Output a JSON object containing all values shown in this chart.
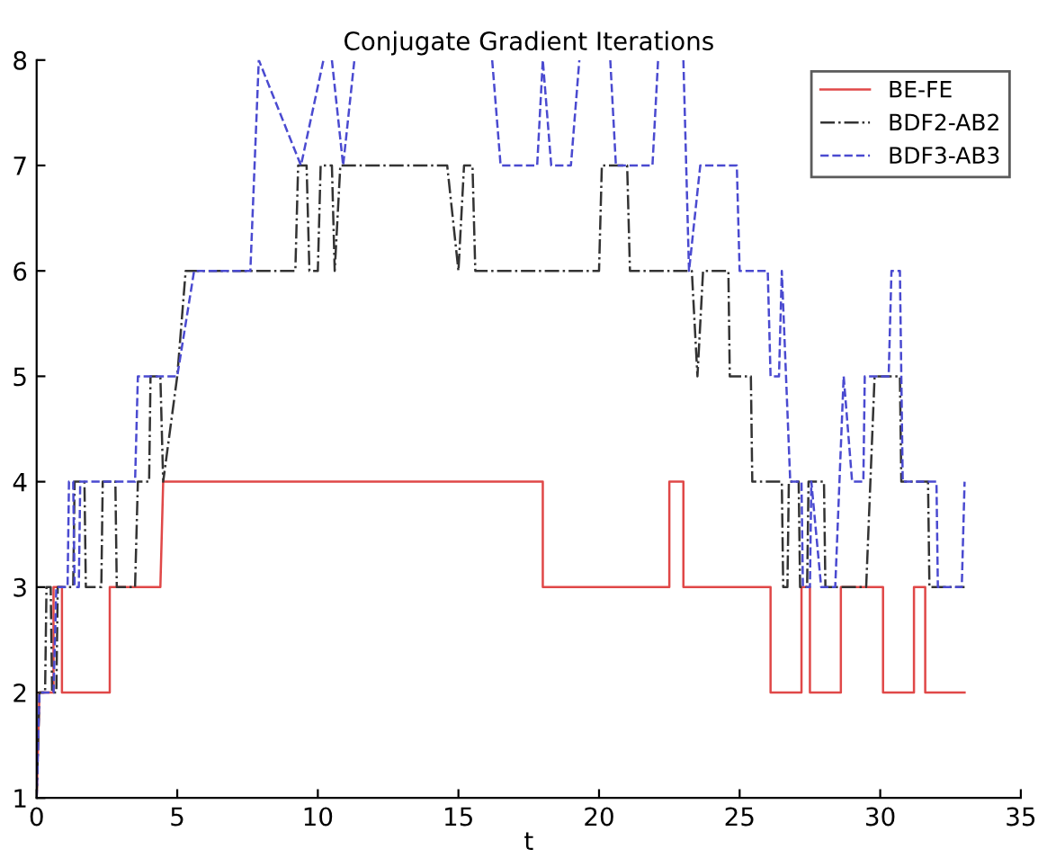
{
  "chart_data": {
    "type": "line",
    "title": "Conjugate Gradient Iterations",
    "xlabel": "t",
    "xlim": [
      0,
      35
    ],
    "xticks": [
      0,
      5,
      10,
      15,
      20,
      25,
      30,
      35
    ],
    "ylim": [
      1,
      8
    ],
    "yticks": [
      1,
      2,
      3,
      4,
      5,
      6,
      7,
      8
    ],
    "grid": false,
    "legend": "top right",
    "marker": "none",
    "series": [
      {
        "name": "BE-FE",
        "color": "#e04848",
        "line_style": "solid",
        "x": [
          0,
          0.1,
          0.6,
          0.6,
          0.9,
          0.9,
          2.6,
          2.6,
          4.4,
          4.5,
          18.0,
          18.0,
          22.5,
          22.5,
          23.0,
          23.0,
          26.1,
          26.1,
          27.2,
          27.2,
          27.5,
          27.5,
          28.6,
          28.6,
          30.1,
          30.1,
          31.2,
          31.2,
          31.6,
          31.6,
          33.0
        ],
        "values": [
          1,
          2,
          2,
          3,
          3,
          2,
          2,
          3,
          3,
          4,
          4,
          3,
          3,
          4,
          4,
          3,
          3,
          2,
          2,
          3,
          3,
          2,
          2,
          3,
          3,
          2,
          2,
          3,
          3,
          2,
          2
        ]
      },
      {
        "name": "BDF2-AB2",
        "color": "#333333",
        "line_style": "dashdot",
        "x": [
          0,
          0.1,
          0.3,
          0.35,
          0.5,
          0.55,
          0.7,
          0.75,
          1.3,
          1.35,
          1.7,
          1.75,
          2.3,
          2.35,
          2.8,
          2.85,
          3.5,
          3.6,
          4.0,
          4.05,
          4.4,
          4.5,
          5.0,
          5.3,
          9.2,
          9.3,
          9.6,
          9.7,
          10.0,
          10.1,
          10.5,
          10.6,
          10.8,
          14.6,
          15.0,
          15.2,
          15.5,
          15.6,
          20.0,
          20.1,
          21.0,
          21.1,
          23.3,
          23.5,
          23.7,
          24.6,
          24.65,
          25.4,
          25.45,
          26.5,
          26.55,
          26.7,
          26.75,
          27.1,
          27.15,
          27.4,
          27.45,
          28.0,
          28.05,
          29.5,
          29.8,
          30.7,
          30.75,
          31.7,
          31.75,
          31.9,
          33.0
        ],
        "values": [
          1,
          2,
          2,
          3,
          3,
          2,
          2,
          3,
          3,
          4,
          4,
          3,
          3,
          4,
          4,
          3,
          3,
          4,
          4,
          5,
          5,
          4,
          5,
          6,
          6,
          7,
          7,
          6,
          6,
          7,
          7,
          6,
          7,
          7,
          6,
          7,
          7,
          6,
          6,
          7,
          7,
          6,
          6,
          5,
          6,
          6,
          5,
          5,
          4,
          4,
          3,
          3,
          4,
          4,
          3,
          3,
          4,
          4,
          3,
          3,
          5,
          5,
          4,
          4,
          3,
          3,
          3
        ]
      },
      {
        "name": "BDF3-AB3",
        "color": "#4a4ad0",
        "line_style": "dashed",
        "x": [
          0,
          0.1,
          0.6,
          0.7,
          1.1,
          1.15,
          1.3,
          1.35,
          1.5,
          1.55,
          3.5,
          3.6,
          5.0,
          5.6,
          7.6,
          7.9,
          9.4,
          10.2,
          10.3,
          10.5,
          10.9,
          11.3,
          11.4,
          16.2,
          16.5,
          17.8,
          18.0,
          18.3,
          19.0,
          19.3,
          19.4,
          20.4,
          20.6,
          21.9,
          22.1,
          22.2,
          23.0,
          23.2,
          23.6,
          24.9,
          25.0,
          26.0,
          26.1,
          26.4,
          26.5,
          26.8,
          27.2,
          27.25,
          27.5,
          27.55,
          27.9,
          28.4,
          28.7,
          29.0,
          29.4,
          29.45,
          30.3,
          30.4,
          30.7,
          30.8,
          32.0,
          32.05,
          32.9,
          33.0
        ],
        "values": [
          1,
          2,
          2,
          3,
          3,
          4,
          4,
          3,
          3,
          4,
          4,
          5,
          5,
          6,
          6,
          8,
          7,
          8,
          null,
          8,
          7,
          8,
          null,
          8,
          7,
          7,
          8,
          7,
          7,
          8,
          null,
          8,
          7,
          7,
          8,
          null,
          8,
          6,
          7,
          7,
          6,
          6,
          5,
          5,
          6,
          4,
          4,
          3,
          3,
          4,
          3,
          3,
          5,
          4,
          4,
          5,
          5,
          6,
          6,
          4,
          4,
          3,
          3,
          4
        ]
      }
    ]
  }
}
